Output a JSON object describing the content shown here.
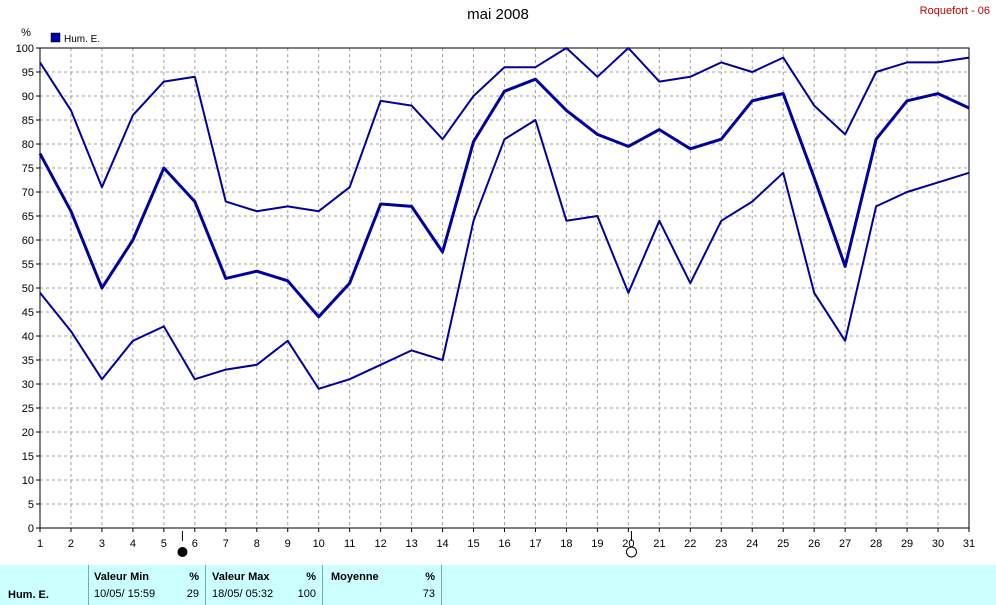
{
  "title": "mai 2008",
  "station": "Roquefort - 06",
  "chart_data": {
    "type": "line",
    "ylabel": "%",
    "ylim": [
      0,
      100
    ],
    "y_ticks": [
      0,
      5,
      10,
      15,
      20,
      25,
      30,
      35,
      40,
      45,
      50,
      55,
      60,
      65,
      70,
      75,
      80,
      85,
      90,
      95,
      100
    ],
    "x": [
      1,
      2,
      3,
      4,
      5,
      6,
      7,
      8,
      9,
      10,
      11,
      12,
      13,
      14,
      15,
      16,
      17,
      18,
      19,
      20,
      21,
      22,
      23,
      24,
      25,
      26,
      27,
      28,
      29,
      30,
      31
    ],
    "legend": "Hum. E.",
    "legend_position": "top-left",
    "grid": true,
    "series": [
      {
        "role": "max",
        "color": "#0000a0",
        "values": [
          97,
          87,
          71,
          86,
          93,
          94,
          68,
          66,
          67,
          66,
          71,
          89,
          88,
          81,
          90,
          96,
          96,
          100,
          94,
          100,
          93,
          94,
          97,
          95,
          98,
          88,
          82,
          95,
          97,
          97,
          98
        ]
      },
      {
        "role": "mean",
        "color": "#0000a0",
        "values": [
          78,
          66,
          50,
          60,
          75,
          68,
          52,
          53.5,
          51.5,
          44,
          51,
          67.5,
          67,
          57.5,
          80.5,
          91,
          93.5,
          87,
          82,
          79.5,
          83,
          79,
          81,
          89,
          90.5,
          73,
          54.5,
          81,
          89,
          90.5,
          87.5
        ]
      },
      {
        "role": "min",
        "color": "#0000a0",
        "values": [
          49,
          41,
          31,
          39,
          42,
          31,
          33,
          34,
          39,
          29,
          31,
          34,
          37,
          35,
          64,
          81,
          85,
          64,
          65,
          49,
          64,
          51,
          64,
          68,
          74,
          49,
          39,
          67,
          70,
          72,
          74
        ]
      }
    ],
    "moon_markers": [
      {
        "x": 5.6,
        "phase": "full"
      },
      {
        "x": 20.1,
        "phase": "new"
      }
    ]
  },
  "stats": {
    "row_label": "Hum. E.",
    "min_label": "Valeur Min",
    "min_unit": "%",
    "min_time": "10/05/ 15:59",
    "min_value": "29",
    "max_label": "Valeur Max",
    "max_unit": "%",
    "max_time": "18/05/ 05:32",
    "max_value": "100",
    "mean_label": "Moyenne",
    "mean_unit": "%",
    "mean_value": "73"
  }
}
